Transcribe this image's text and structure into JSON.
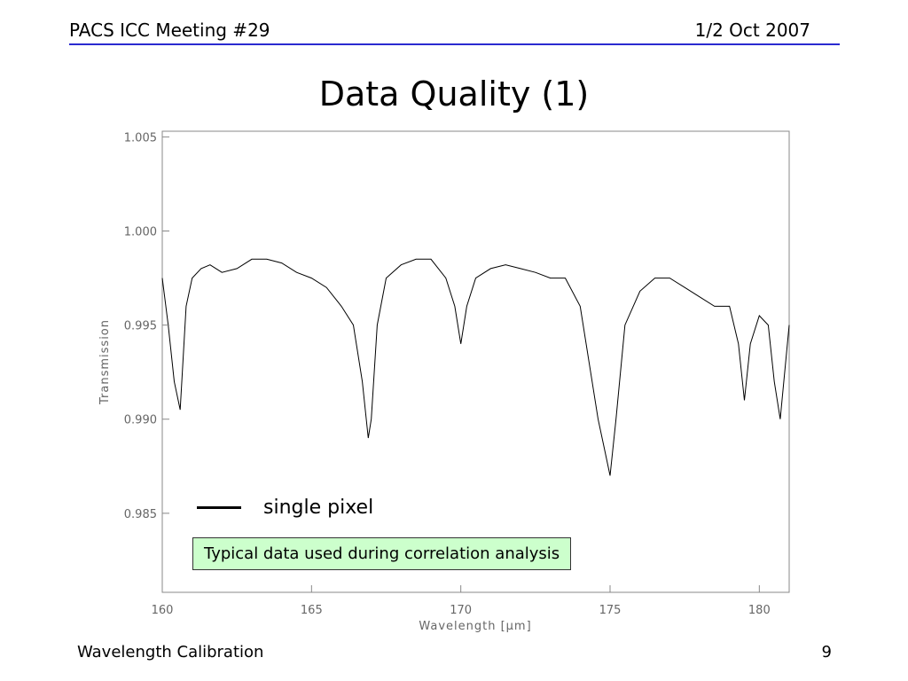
{
  "header": {
    "left": "PACS ICC Meeting #29",
    "right": "1/2 Oct 2007"
  },
  "title": "Data Quality (1)",
  "legend": {
    "label": "single pixel"
  },
  "note": "Typical data used during correlation analysis",
  "footer": {
    "left": "Wavelength Calibration",
    "page": "9"
  },
  "colors": {
    "rule": "#2b2bd0",
    "note_bg": "#ccffcc",
    "trace": "#000000",
    "axis": "#888888"
  },
  "chart_data": {
    "type": "line",
    "xlabel": "Wavelength [μm]",
    "ylabel": "Transmission",
    "xlim": [
      160,
      181
    ],
    "ylim": [
      0.9808,
      1.0053
    ],
    "xticks": [
      "160",
      "165",
      "170",
      "175",
      "180"
    ],
    "yticks": [
      "0.985",
      "0.990",
      "0.995",
      "1.000",
      "1.005"
    ],
    "grid": false,
    "series": [
      {
        "name": "single pixel",
        "x": [
          160.0,
          160.2,
          160.4,
          160.6,
          160.8,
          161.0,
          161.3,
          161.6,
          162.0,
          162.5,
          163.0,
          163.5,
          164.0,
          164.5,
          165.0,
          165.5,
          166.0,
          166.4,
          166.7,
          166.9,
          167.0,
          167.2,
          167.5,
          168.0,
          168.5,
          169.0,
          169.5,
          169.8,
          170.0,
          170.2,
          170.5,
          171.0,
          171.5,
          172.0,
          172.5,
          173.0,
          173.5,
          174.0,
          174.3,
          174.6,
          174.8,
          175.0,
          175.2,
          175.5,
          176.0,
          176.5,
          177.0,
          177.5,
          178.0,
          178.5,
          179.0,
          179.3,
          179.5,
          179.7,
          180.0,
          180.3,
          180.5,
          180.7,
          181.0
        ],
        "y": [
          0.9975,
          0.995,
          0.992,
          0.9905,
          0.996,
          0.9975,
          0.998,
          0.9982,
          0.9978,
          0.998,
          0.9985,
          0.9985,
          0.9983,
          0.9978,
          0.9975,
          0.997,
          0.996,
          0.995,
          0.992,
          0.989,
          0.99,
          0.995,
          0.9975,
          0.9982,
          0.9985,
          0.9985,
          0.9975,
          0.996,
          0.994,
          0.996,
          0.9975,
          0.998,
          0.9982,
          0.998,
          0.9978,
          0.9975,
          0.9975,
          0.996,
          0.993,
          0.99,
          0.9885,
          0.987,
          0.99,
          0.995,
          0.9968,
          0.9975,
          0.9975,
          0.997,
          0.9965,
          0.996,
          0.996,
          0.994,
          0.991,
          0.994,
          0.9955,
          0.995,
          0.992,
          0.99,
          0.995
        ]
      }
    ]
  }
}
